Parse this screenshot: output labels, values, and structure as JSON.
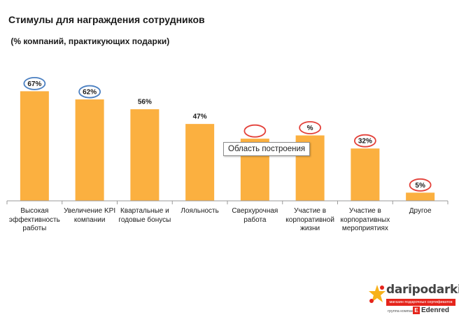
{
  "chart_data": {
    "type": "bar",
    "title": "Стимулы для награждения сотрудников",
    "subtitle": " (% компаний, практикующих подарки)",
    "categories": [
      "Высокая эффективность работы",
      "Увеличение KPI компании",
      "Квартальные и годовые бонусы",
      "Лояльность",
      "Сверхурочная работа",
      "Участие в корпоративной жизни",
      "Участие в корпоративных мероприятиях",
      "Другое"
    ],
    "values": [
      67,
      62,
      56,
      47,
      38,
      40,
      32,
      5
    ],
    "data_labels": [
      "67%",
      "62%",
      "56%",
      "47%",
      "",
      "%",
      "32%",
      "5%"
    ],
    "label_circles": [
      "blue",
      "blue",
      "none",
      "none",
      "red",
      "red",
      "red",
      "red"
    ],
    "ylim": [
      0,
      80
    ],
    "grid": false,
    "legend": "none",
    "colors": {
      "bar": "#fbb040",
      "circle_blue": "#4a7fc1",
      "circle_red": "#e3413a",
      "axis": "#9a9a9a"
    }
  },
  "tooltip": {
    "text": "Область построения"
  },
  "logo": {
    "name": "daripodarki.ru",
    "tagline": "магазин подарочных сертификатов",
    "group_text": "группа компаний",
    "partner": "Edenred"
  }
}
